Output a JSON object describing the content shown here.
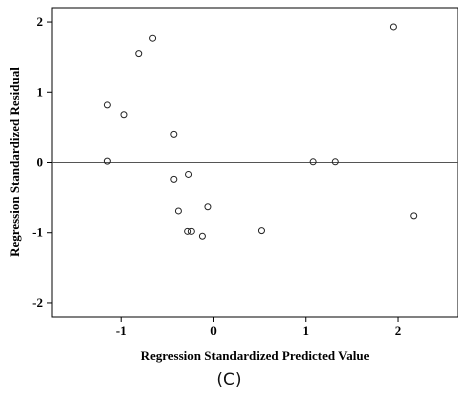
{
  "chart_data": {
    "type": "scatter",
    "title": "",
    "xlabel": "Regression Standardized Predicted Value",
    "ylabel": "Regression Standardized Residual",
    "xlim": [
      -1.75,
      2.65
    ],
    "ylim": [
      -2.2,
      2.2
    ],
    "xticks": [
      -1,
      0,
      1,
      2
    ],
    "yticks": [
      -2,
      -1,
      0,
      1,
      2
    ],
    "tick_labels_x": [
      "-1",
      "0",
      "1",
      "2"
    ],
    "tick_labels_y": [
      "-2",
      "-1",
      "0",
      "1",
      "2"
    ],
    "reference_line_y": 0,
    "grid": false,
    "points": [
      {
        "x": -1.15,
        "y": 0.82
      },
      {
        "x": -0.97,
        "y": 0.68
      },
      {
        "x": -0.81,
        "y": 1.55
      },
      {
        "x": -0.66,
        "y": 1.77
      },
      {
        "x": -1.15,
        "y": 0.02
      },
      {
        "x": -0.43,
        "y": 0.4
      },
      {
        "x": -0.43,
        "y": -0.24
      },
      {
        "x": -0.27,
        "y": -0.17
      },
      {
        "x": -0.38,
        "y": -0.69
      },
      {
        "x": -0.06,
        "y": -0.63
      },
      {
        "x": -0.28,
        "y": -0.98
      },
      {
        "x": -0.24,
        "y": -0.98
      },
      {
        "x": -0.12,
        "y": -1.05
      },
      {
        "x": 0.52,
        "y": -0.97
      },
      {
        "x": 1.08,
        "y": 0.01
      },
      {
        "x": 1.32,
        "y": 0.01
      },
      {
        "x": 1.95,
        "y": 1.93
      },
      {
        "x": 2.17,
        "y": -0.76
      }
    ]
  },
  "caption": "(C)"
}
